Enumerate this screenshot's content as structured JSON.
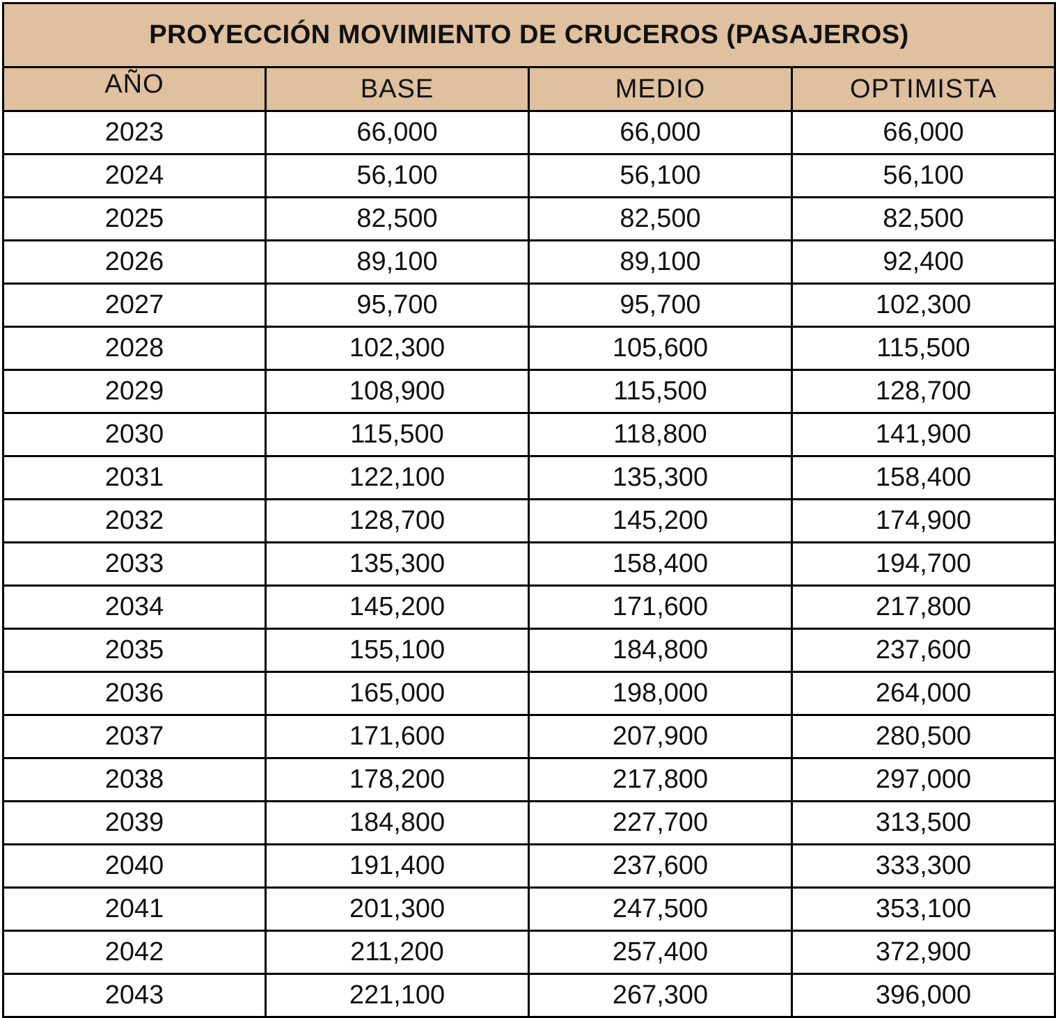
{
  "table": {
    "title": "PROYECCIÓN MOVIMIENTO DE CRUCEROS (PASAJEROS)",
    "headers": [
      "AÑO",
      "BASE",
      "MEDIO",
      "OPTIMISTA"
    ],
    "rows": [
      [
        "2023",
        "66,000",
        "66,000",
        "66,000"
      ],
      [
        "2024",
        "56,100",
        "56,100",
        "56,100"
      ],
      [
        "2025",
        "82,500",
        "82,500",
        "82,500"
      ],
      [
        "2026",
        "89,100",
        "89,100",
        "92,400"
      ],
      [
        "2027",
        "95,700",
        "95,700",
        "102,300"
      ],
      [
        "2028",
        "102,300",
        "105,600",
        "115,500"
      ],
      [
        "2029",
        "108,900",
        "115,500",
        "128,700"
      ],
      [
        "2030",
        "115,500",
        "118,800",
        "141,900"
      ],
      [
        "2031",
        "122,100",
        "135,300",
        "158,400"
      ],
      [
        "2032",
        "128,700",
        "145,200",
        "174,900"
      ],
      [
        "2033",
        "135,300",
        "158,400",
        "194,700"
      ],
      [
        "2034",
        "145,200",
        "171,600",
        "217,800"
      ],
      [
        "2035",
        "155,100",
        "184,800",
        "237,600"
      ],
      [
        "2036",
        "165,000",
        "198,000",
        "264,000"
      ],
      [
        "2037",
        "171,600",
        "207,900",
        "280,500"
      ],
      [
        "2038",
        "178,200",
        "217,800",
        "297,000"
      ],
      [
        "2039",
        "184,800",
        "227,700",
        "313,500"
      ],
      [
        "2040",
        "191,400",
        "237,600",
        "333,300"
      ],
      [
        "2041",
        "201,300",
        "247,500",
        "353,100"
      ],
      [
        "2042",
        "211,200",
        "257,400",
        "372,900"
      ],
      [
        "2043",
        "221,100",
        "267,300",
        "396,000"
      ]
    ]
  },
  "colors": {
    "header_background": "#dfc09f",
    "border": "#000000",
    "text": "#111111"
  }
}
